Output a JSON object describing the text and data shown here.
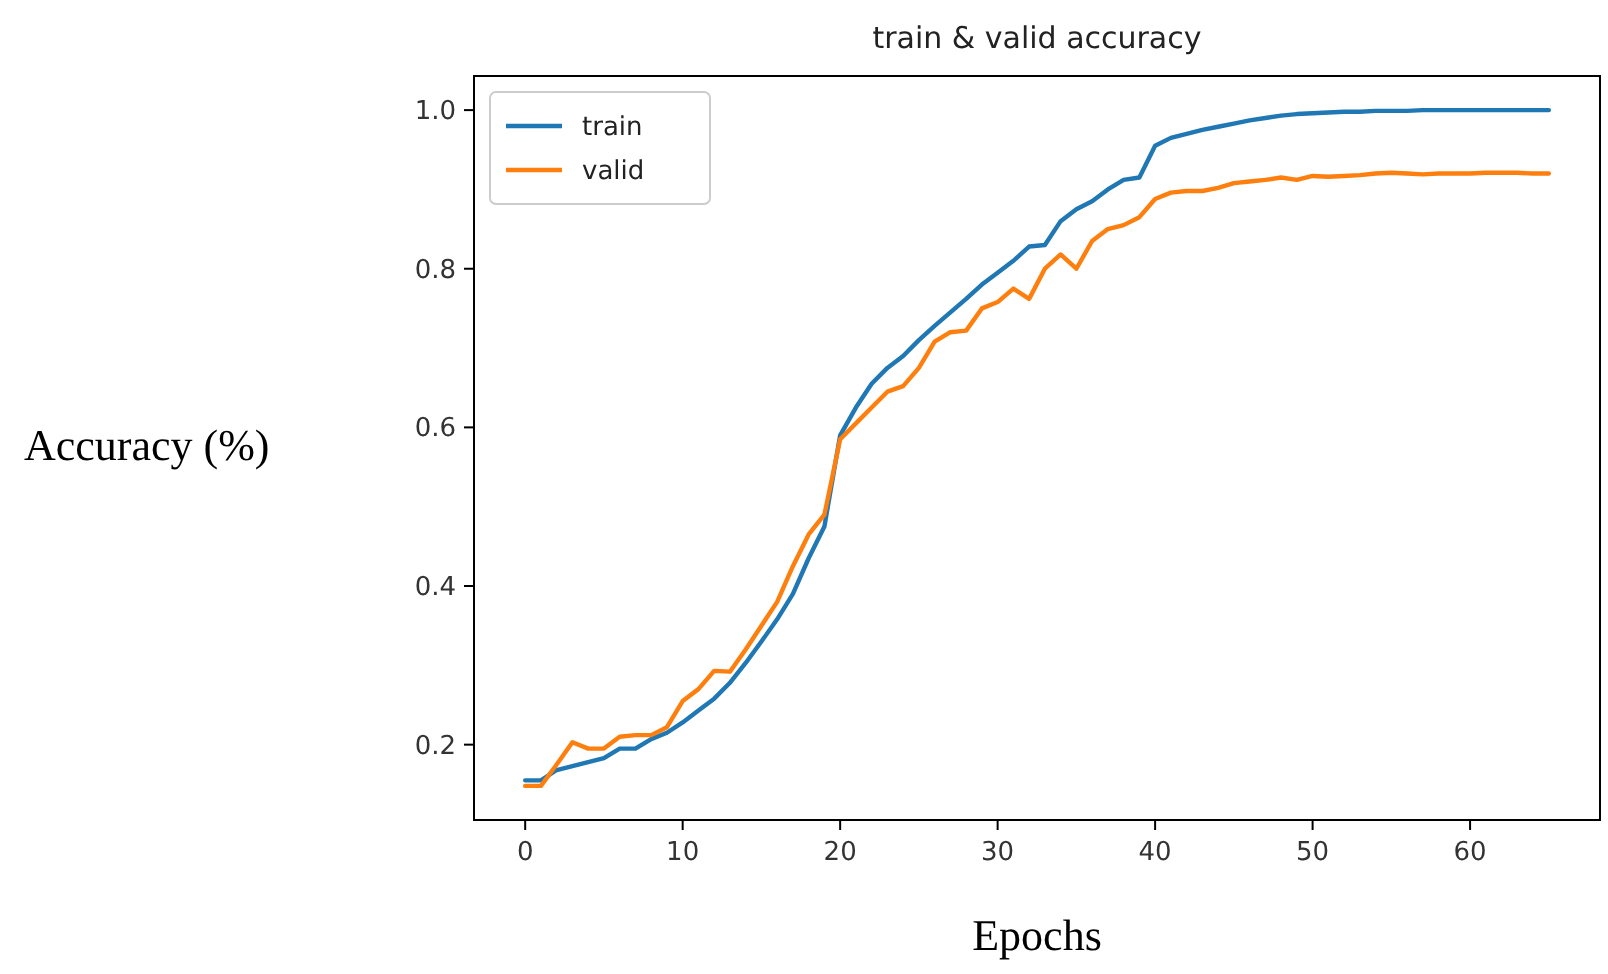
{
  "chart_data": {
    "type": "line",
    "title": "train & valid accuracy",
    "xlabel": "Epochs",
    "ylabel": "Accuracy (%)",
    "x": [
      0,
      1,
      2,
      3,
      4,
      5,
      6,
      7,
      8,
      9,
      10,
      11,
      12,
      13,
      14,
      15,
      16,
      17,
      18,
      19,
      20,
      21,
      22,
      23,
      24,
      25,
      26,
      27,
      28,
      29,
      30,
      31,
      32,
      33,
      34,
      35,
      36,
      37,
      38,
      39,
      40,
      41,
      42,
      43,
      44,
      45,
      46,
      47,
      48,
      49,
      50,
      51,
      52,
      53,
      54,
      55,
      56,
      57,
      58,
      59,
      60,
      61,
      62,
      63,
      64,
      65
    ],
    "series": [
      {
        "name": "train",
        "color": "#1f77b4",
        "values": [
          0.155,
          0.155,
          0.168,
          0.173,
          0.178,
          0.183,
          0.195,
          0.195,
          0.207,
          0.215,
          0.228,
          0.243,
          0.258,
          0.278,
          0.303,
          0.33,
          0.358,
          0.39,
          0.435,
          0.475,
          0.59,
          0.625,
          0.655,
          0.675,
          0.69,
          0.71,
          0.728,
          0.745,
          0.762,
          0.78,
          0.795,
          0.81,
          0.828,
          0.83,
          0.86,
          0.875,
          0.885,
          0.9,
          0.912,
          0.915,
          0.955,
          0.965,
          0.97,
          0.975,
          0.979,
          0.983,
          0.987,
          0.99,
          0.993,
          0.995,
          0.996,
          0.997,
          0.998,
          0.998,
          0.999,
          0.999,
          0.999,
          1.0,
          1.0,
          1.0,
          1.0,
          1.0,
          1.0,
          1.0,
          1.0,
          1.0
        ]
      },
      {
        "name": "valid",
        "color": "#ff7f0e",
        "values": [
          0.148,
          0.148,
          0.175,
          0.203,
          0.195,
          0.195,
          0.21,
          0.212,
          0.212,
          0.222,
          0.255,
          0.27,
          0.293,
          0.292,
          0.32,
          0.35,
          0.38,
          0.425,
          0.465,
          0.49,
          0.585,
          0.605,
          0.625,
          0.645,
          0.652,
          0.675,
          0.708,
          0.72,
          0.722,
          0.75,
          0.758,
          0.775,
          0.762,
          0.8,
          0.818,
          0.8,
          0.835,
          0.85,
          0.855,
          0.865,
          0.888,
          0.896,
          0.898,
          0.898,
          0.902,
          0.908,
          0.91,
          0.912,
          0.915,
          0.912,
          0.917,
          0.916,
          0.917,
          0.918,
          0.92,
          0.921,
          0.92,
          0.919,
          0.92,
          0.92,
          0.92,
          0.921,
          0.921,
          0.921,
          0.92,
          0.92
        ]
      }
    ],
    "xlim": [
      -3.25,
      68.25
    ],
    "xticks": [
      0,
      10,
      20,
      30,
      40,
      50,
      60
    ],
    "ylim": [
      0.105,
      1.043
    ],
    "yticks": [
      0.2,
      0.4,
      0.6,
      0.8,
      {
        "value": 1.0,
        "label": "1.0"
      }
    ],
    "legend": "top left",
    "grid": false,
    "marker": "none",
    "line_style": "solid"
  }
}
